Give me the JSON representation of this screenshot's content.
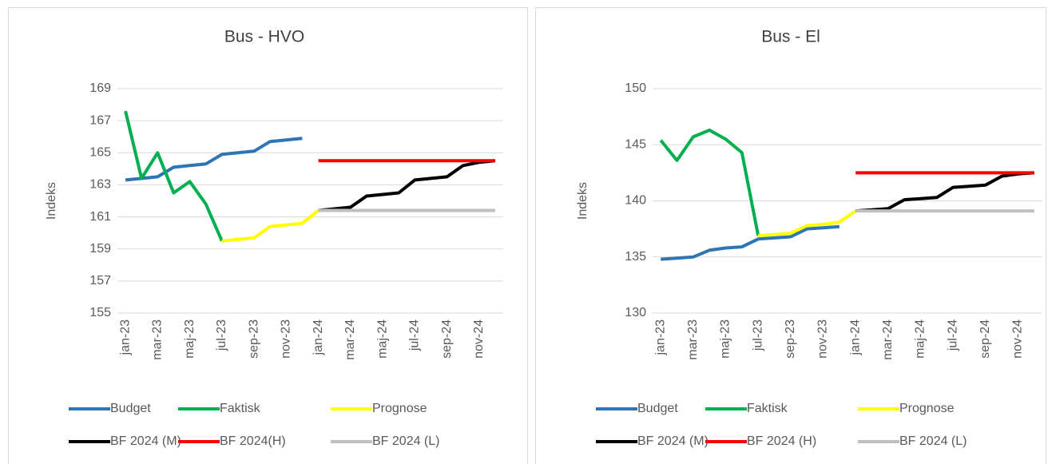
{
  "chart_data": [
    {
      "type": "line",
      "title": "Bus - HVO",
      "ylabel": "Indeks",
      "categories": [
        "jan-23",
        null,
        "mar-23",
        null,
        "maj-23",
        null,
        "jul-23",
        null,
        "sep-23",
        null,
        "nov-23",
        null,
        "jan-24",
        null,
        "mar-24",
        null,
        "maj-24",
        null,
        "jul-24",
        null,
        "sep-24",
        null,
        "nov-24",
        null
      ],
      "ylim": [
        155,
        169
      ],
      "yticks": [
        155,
        157,
        159,
        161,
        163,
        165,
        167,
        169
      ],
      "grid": true,
      "legend": "bottom",
      "series": [
        {
          "name": "Budget",
          "color": "#2e75b6",
          "values": [
            163.3,
            163.4,
            163.5,
            164.1,
            164.2,
            164.3,
            164.9,
            165.0,
            165.1,
            165.7,
            165.8,
            165.9,
            null,
            null,
            null,
            null,
            null,
            null,
            null,
            null,
            null,
            null,
            null,
            null
          ]
        },
        {
          "name": "Faktisk",
          "color": "#00b050",
          "values": [
            167.6,
            163.4,
            165.0,
            162.5,
            163.2,
            161.8,
            159.5,
            null,
            null,
            null,
            null,
            null,
            null,
            null,
            null,
            null,
            null,
            null,
            null,
            null,
            null,
            null,
            null,
            null
          ]
        },
        {
          "name": "Prognose",
          "color": "#ffff00",
          "values": [
            null,
            null,
            null,
            null,
            null,
            null,
            159.5,
            159.6,
            159.7,
            160.4,
            160.5,
            160.6,
            161.4,
            null,
            null,
            null,
            null,
            null,
            null,
            null,
            null,
            null,
            null,
            null
          ]
        },
        {
          "name": "BF 2024 (M)",
          "color": "#000000",
          "values": [
            null,
            null,
            null,
            null,
            null,
            null,
            null,
            null,
            null,
            null,
            null,
            null,
            161.4,
            161.5,
            161.6,
            162.3,
            162.4,
            162.5,
            163.3,
            163.4,
            163.5,
            164.2,
            164.4,
            164.5
          ]
        },
        {
          "name": "BF 2024(H)",
          "color": "#ff0000",
          "values": [
            null,
            null,
            null,
            null,
            null,
            null,
            null,
            null,
            null,
            null,
            null,
            null,
            164.5,
            164.5,
            164.5,
            164.5,
            164.5,
            164.5,
            164.5,
            164.5,
            164.5,
            164.5,
            164.5,
            164.5
          ]
        },
        {
          "name": "BF 2024 (L)",
          "color": "#bfbfbf",
          "values": [
            null,
            null,
            null,
            null,
            null,
            null,
            null,
            null,
            null,
            null,
            null,
            null,
            161.4,
            161.4,
            161.4,
            161.4,
            161.4,
            161.4,
            161.4,
            161.4,
            161.4,
            161.4,
            161.4,
            161.4
          ]
        }
      ]
    },
    {
      "type": "line",
      "title": "Bus - El",
      "ylabel": "Indeks",
      "categories": [
        "jan-23",
        null,
        "mar-23",
        null,
        "maj-23",
        null,
        "jul-23",
        null,
        "sep-23",
        null,
        "nov-23",
        null,
        "jan-24",
        null,
        "mar-24",
        null,
        "maj-24",
        null,
        "jul-24",
        null,
        "sep-24",
        null,
        "nov-24",
        null
      ],
      "ylim": [
        130,
        150
      ],
      "yticks": [
        130,
        135,
        140,
        145,
        150
      ],
      "grid": true,
      "legend": "bottom",
      "series": [
        {
          "name": "Budget",
          "color": "#2e75b6",
          "values": [
            134.8,
            134.9,
            135.0,
            135.6,
            135.8,
            135.9,
            136.6,
            136.7,
            136.8,
            137.5,
            137.6,
            137.7,
            null,
            null,
            null,
            null,
            null,
            null,
            null,
            null,
            null,
            null,
            null,
            null
          ]
        },
        {
          "name": "Faktisk",
          "color": "#00b050",
          "values": [
            145.4,
            143.6,
            145.7,
            146.3,
            145.5,
            144.3,
            136.9,
            null,
            null,
            null,
            null,
            null,
            null,
            null,
            null,
            null,
            null,
            null,
            null,
            null,
            null,
            null,
            null,
            null
          ]
        },
        {
          "name": "Prognose",
          "color": "#ffff00",
          "values": [
            null,
            null,
            null,
            null,
            null,
            null,
            136.9,
            137.0,
            137.1,
            137.8,
            137.9,
            138.1,
            139.1,
            null,
            null,
            null,
            null,
            null,
            null,
            null,
            null,
            null,
            null,
            null
          ]
        },
        {
          "name": "BF 2024 (M)",
          "color": "#000000",
          "values": [
            null,
            null,
            null,
            null,
            null,
            null,
            null,
            null,
            null,
            null,
            null,
            null,
            139.1,
            139.2,
            139.3,
            140.1,
            140.2,
            140.3,
            141.2,
            141.3,
            141.4,
            142.2,
            142.4,
            142.5
          ]
        },
        {
          "name": "BF 2024 (H)",
          "color": "#ff0000",
          "values": [
            null,
            null,
            null,
            null,
            null,
            null,
            null,
            null,
            null,
            null,
            null,
            null,
            142.5,
            142.5,
            142.5,
            142.5,
            142.5,
            142.5,
            142.5,
            142.5,
            142.5,
            142.5,
            142.5,
            142.5
          ]
        },
        {
          "name": "BF 2024 (L)",
          "color": "#bfbfbf",
          "values": [
            null,
            null,
            null,
            null,
            null,
            null,
            null,
            null,
            null,
            null,
            null,
            null,
            139.1,
            139.1,
            139.1,
            139.1,
            139.1,
            139.1,
            139.1,
            139.1,
            139.1,
            139.1,
            139.1,
            139.1
          ]
        }
      ]
    }
  ]
}
